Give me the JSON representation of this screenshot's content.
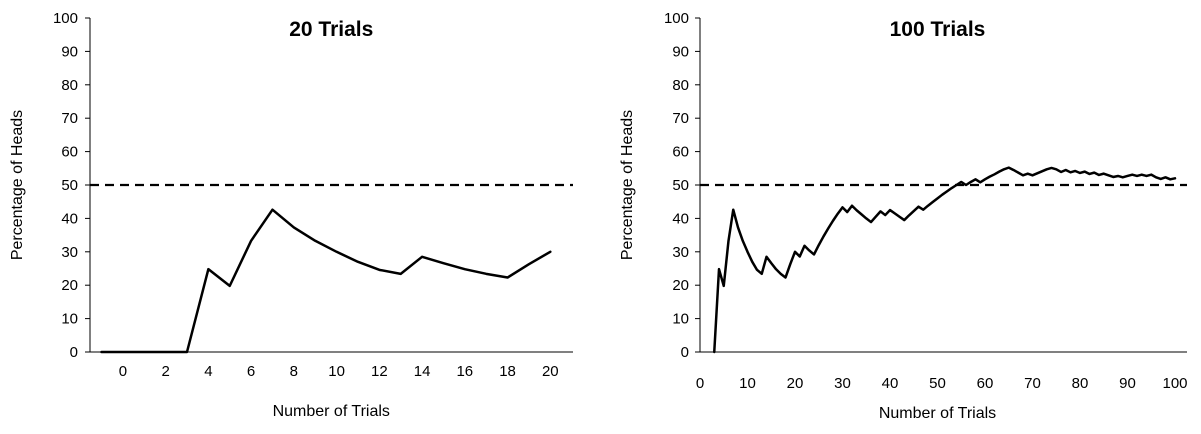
{
  "chart_data": [
    {
      "type": "line",
      "title": "20 Trials",
      "xlabel": "Number of Trials",
      "ylabel": "Percentage of Heads",
      "xlim": [
        -1,
        20.5
      ],
      "ylim": [
        0,
        100
      ],
      "xticks": [
        "0",
        "2",
        "4",
        "6",
        "8",
        "10",
        "12",
        "14",
        "16",
        "18",
        "20"
      ],
      "yticks": [
        "0",
        "10",
        "20",
        "30",
        "40",
        "50",
        "60",
        "70",
        "80",
        "90",
        "100"
      ],
      "grid": false,
      "reference_line": {
        "y": 50,
        "style": "dashed"
      },
      "series": [
        {
          "x": [
            -1,
            0,
            1,
            2,
            3,
            4,
            5,
            6,
            7,
            8,
            9,
            10,
            11,
            12,
            13,
            14,
            15,
            16,
            17,
            18,
            19,
            20
          ],
          "values": [
            0,
            0,
            0,
            0,
            0,
            24.8,
            19.8,
            33.3,
            42.6,
            37.3,
            33.3,
            30.0,
            27.0,
            24.6,
            23.4,
            28.5,
            26.6,
            24.8,
            23.4,
            22.3,
            26.3,
            30.0
          ]
        }
      ]
    },
    {
      "type": "line",
      "title": "100 Trials",
      "xlabel": "Number of Trials",
      "ylabel": "Percentage of Heads",
      "xlim": [
        0,
        100
      ],
      "ylim": [
        0,
        100
      ],
      "xticks": [
        "0",
        "10",
        "20",
        "30",
        "40",
        "50",
        "60",
        "70",
        "80",
        "90",
        "100"
      ],
      "yticks": [
        "0",
        "10",
        "20",
        "30",
        "40",
        "50",
        "60",
        "70",
        "80",
        "90",
        "100"
      ],
      "grid": false,
      "reference_line": {
        "y": 50,
        "style": "dashed"
      },
      "series": [
        {
          "x": [
            3,
            4,
            5,
            6,
            7,
            8,
            9,
            10,
            11,
            12,
            13,
            14,
            15,
            16,
            17,
            18,
            19,
            20,
            21,
            22,
            23,
            24,
            25,
            26,
            27,
            28,
            29,
            30,
            31,
            32,
            33,
            34,
            35,
            36,
            37,
            38,
            39,
            40,
            41,
            42,
            43,
            44,
            45,
            46,
            47,
            48,
            49,
            50,
            51,
            52,
            53,
            54,
            55,
            56,
            57,
            58,
            59,
            60,
            61,
            62,
            63,
            64,
            65,
            66,
            67,
            68,
            69,
            70,
            71,
            72,
            73,
            74,
            75,
            76,
            77,
            78,
            79,
            80,
            81,
            82,
            83,
            84,
            85,
            86,
            87,
            88,
            89,
            90,
            91,
            92,
            93,
            94,
            95,
            96,
            97,
            98,
            99,
            100
          ],
          "values": [
            0,
            24.8,
            19.8,
            33.3,
            42.6,
            37.3,
            33.3,
            30.0,
            27.0,
            24.6,
            23.4,
            28.5,
            26.6,
            24.8,
            23.4,
            22.3,
            26.3,
            30.0,
            28.6,
            31.8,
            30.4,
            29.2,
            32.0,
            34.6,
            37.0,
            39.3,
            41.4,
            43.3,
            41.9,
            43.8,
            42.4,
            41.2,
            40.0,
            38.9,
            40.5,
            42.1,
            41.0,
            42.5,
            41.5,
            40.5,
            39.5,
            40.9,
            42.2,
            43.5,
            42.6,
            43.8,
            44.9,
            46.0,
            47.1,
            48.1,
            49.1,
            50.0,
            50.9,
            50.0,
            50.9,
            51.7,
            50.8,
            51.7,
            52.5,
            53.2,
            54.0,
            54.7,
            55.2,
            54.5,
            53.7,
            52.9,
            53.4,
            52.9,
            53.5,
            54.1,
            54.7,
            55.1,
            54.7,
            53.9,
            54.5,
            53.8,
            54.2,
            53.6,
            54.0,
            53.3,
            53.7,
            53.0,
            53.4,
            52.9,
            52.4,
            52.7,
            52.3,
            52.7,
            53.1,
            52.7,
            53.1,
            52.7,
            53.1,
            52.3,
            51.8,
            52.3,
            51.7,
            52.0
          ]
        }
      ]
    }
  ]
}
